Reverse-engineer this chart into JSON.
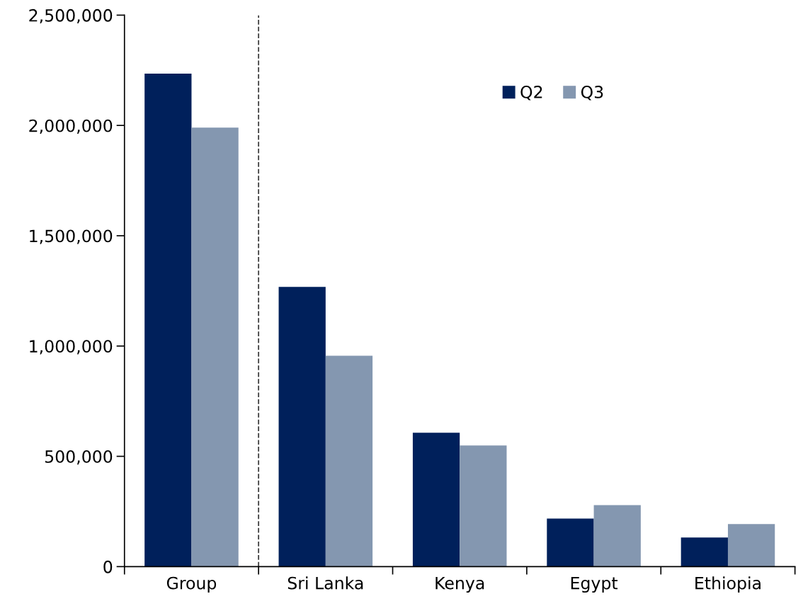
{
  "chart_data": {
    "type": "bar",
    "categories": [
      "Group",
      "Sri Lanka",
      "Kenya",
      "Egypt",
      "Ethiopia"
    ],
    "series": [
      {
        "name": "Q2",
        "color": "#00205b",
        "values": [
          2235000,
          1268000,
          607000,
          218000,
          132000
        ]
      },
      {
        "name": "Q3",
        "color": "#8497b0",
        "values": [
          1990000,
          956000,
          549000,
          279000,
          193000
        ]
      }
    ],
    "ylim": [
      0,
      2500000
    ],
    "yticks": [
      {
        "value": 0,
        "label": "0"
      },
      {
        "value": 500000,
        "label": "500,000"
      },
      {
        "value": 1000000,
        "label": "1,000,000"
      },
      {
        "value": 1500000,
        "label": "1,500,000"
      },
      {
        "value": 2000000,
        "label": "2,000,000"
      },
      {
        "value": 2500000,
        "label": "2,500,000"
      }
    ],
    "legend": "top right",
    "grid": false
  }
}
